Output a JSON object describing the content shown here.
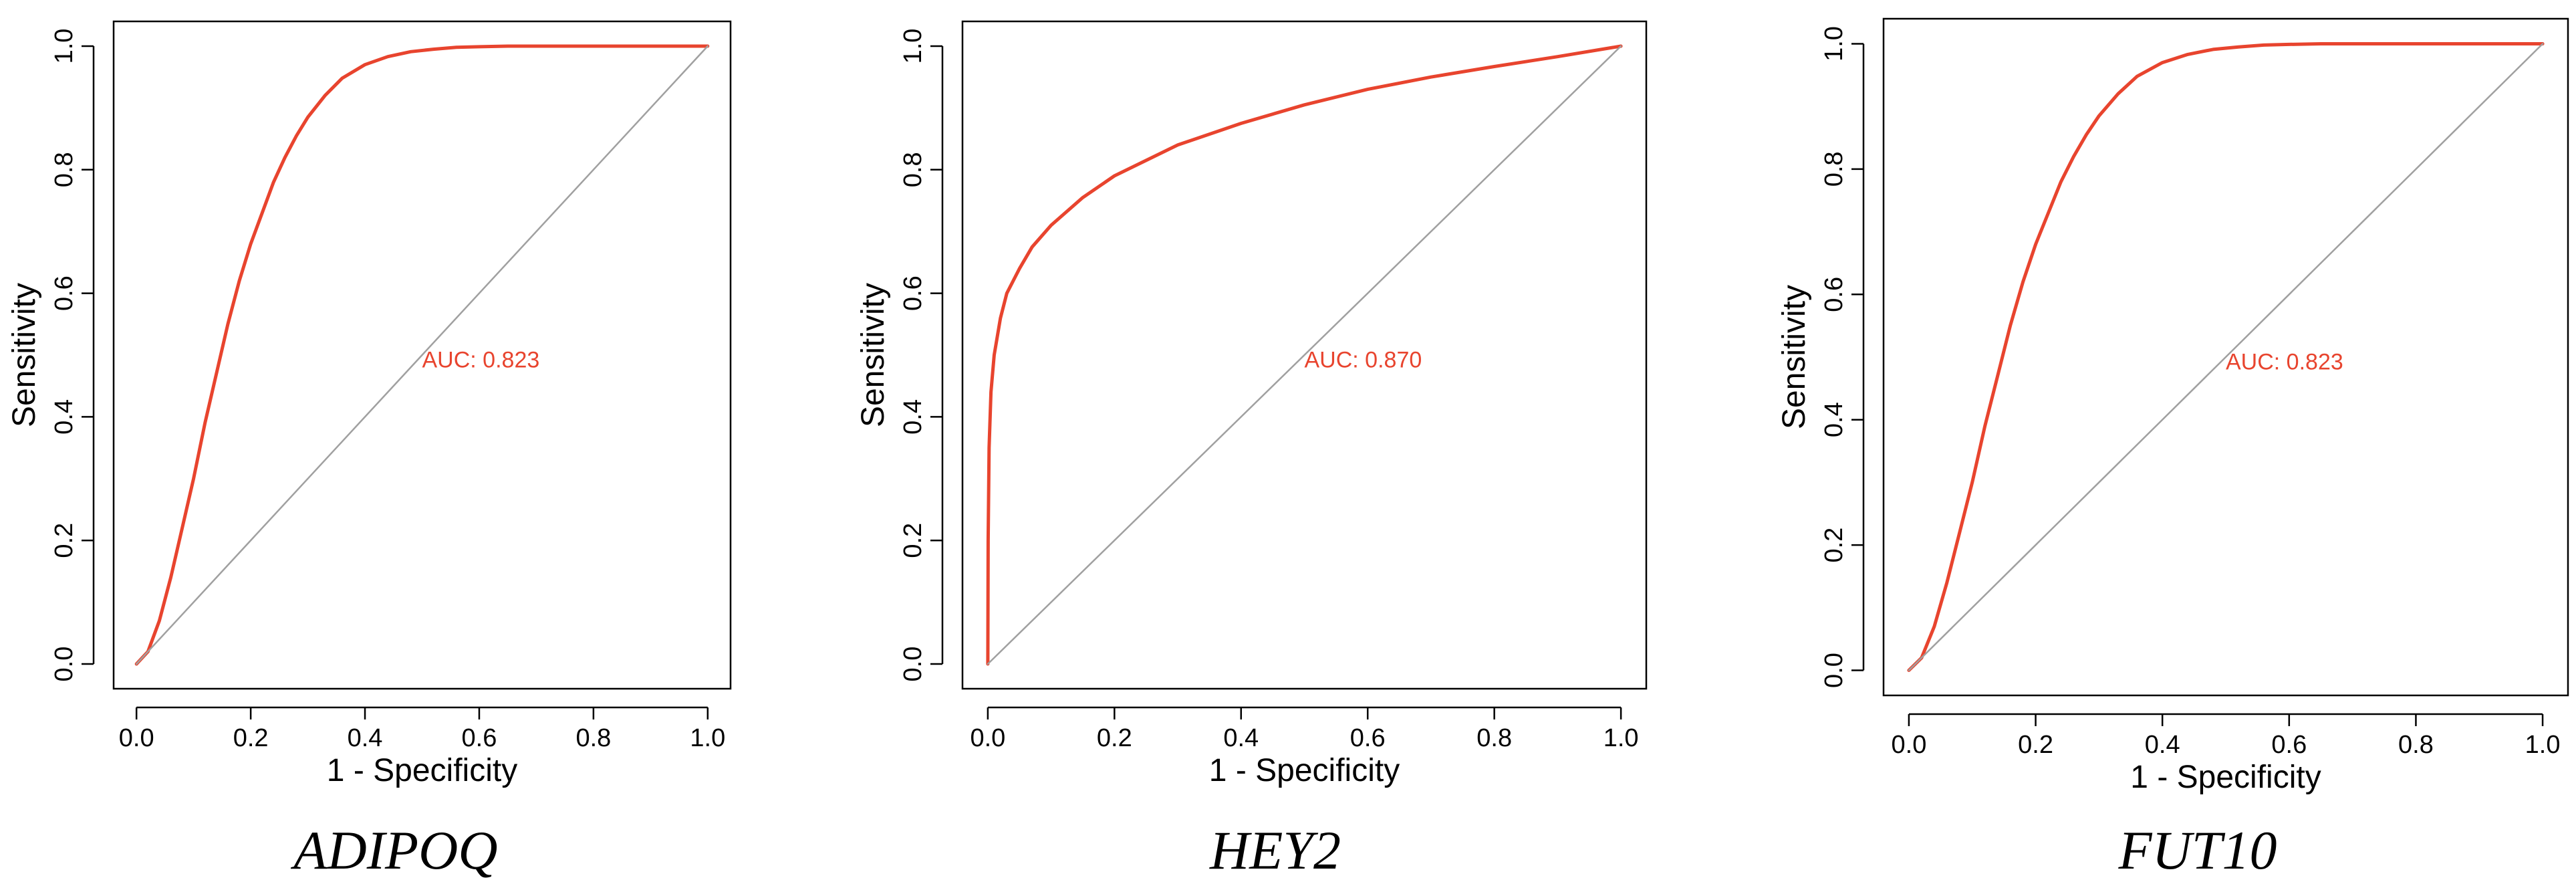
{
  "chart_data": [
    {
      "type": "line",
      "title": "ADIPOQ",
      "xlabel": "1 -  Specificity",
      "ylabel": "Sensitivity",
      "xlim": [
        0,
        1
      ],
      "ylim": [
        0,
        1
      ],
      "xticks": [
        "0.0",
        "0.2",
        "0.4",
        "0.6",
        "0.8",
        "1.0"
      ],
      "yticks": [
        "0.0",
        "0.2",
        "0.4",
        "0.6",
        "0.8",
        "1.0"
      ],
      "annotation": "AUC: 0.823",
      "annotation_pos": [
        0.5,
        0.48
      ],
      "series": [
        {
          "color": "#e8442e",
          "x": [
            0,
            0.02,
            0.04,
            0.06,
            0.08,
            0.1,
            0.12,
            0.14,
            0.16,
            0.18,
            0.2,
            0.22,
            0.24,
            0.26,
            0.28,
            0.3,
            0.33,
            0.36,
            0.4,
            0.44,
            0.48,
            0.52,
            0.56,
            0.6,
            0.65,
            0.7,
            0.8,
            0.9,
            1.0
          ],
          "y": [
            0,
            0.02,
            0.07,
            0.14,
            0.22,
            0.3,
            0.39,
            0.47,
            0.55,
            0.62,
            0.68,
            0.73,
            0.78,
            0.82,
            0.855,
            0.885,
            0.92,
            0.948,
            0.97,
            0.983,
            0.991,
            0.995,
            0.998,
            0.999,
            1.0,
            1.0,
            1.0,
            1.0,
            1.0
          ]
        },
        {
          "name": "",
          "color": "#a0a0a0",
          "x": [
            0,
            1
          ],
          "y": [
            0,
            1
          ]
        }
      ]
    },
    {
      "type": "line",
      "title": "HEY2",
      "xlabel": "1 -  Specificity",
      "ylabel": "Sensitivity",
      "xlim": [
        0,
        1
      ],
      "ylim": [
        0,
        1
      ],
      "xticks": [
        "0.0",
        "0.2",
        "0.4",
        "0.6",
        "0.8",
        "1.0"
      ],
      "yticks": [
        "0.0",
        "0.2",
        "0.4",
        "0.6",
        "0.8",
        "1.0"
      ],
      "annotation": "AUC: 0.870",
      "annotation_pos": [
        0.5,
        0.48
      ],
      "series": [
        {
          "color": "#e8442e",
          "x": [
            0,
            0.0005,
            0.002,
            0.005,
            0.01,
            0.02,
            0.03,
            0.05,
            0.07,
            0.1,
            0.15,
            0.2,
            0.25,
            0.3,
            0.4,
            0.5,
            0.6,
            0.7,
            0.8,
            0.9,
            1.0
          ],
          "y": [
            0,
            0.2,
            0.35,
            0.44,
            0.5,
            0.56,
            0.6,
            0.64,
            0.675,
            0.71,
            0.755,
            0.79,
            0.815,
            0.84,
            0.875,
            0.905,
            0.93,
            0.95,
            0.967,
            0.983,
            1.0
          ]
        },
        {
          "color": "#a0a0a0",
          "x": [
            0,
            1
          ],
          "y": [
            0,
            1
          ]
        }
      ]
    },
    {
      "type": "line",
      "title": "FUT10",
      "xlabel": "1 -  Specificity",
      "ylabel": "Sensitivity",
      "xlim": [
        0,
        1
      ],
      "ylim": [
        0,
        1
      ],
      "xticks": [
        "0.0",
        "0.2",
        "0.4",
        "0.6",
        "0.8",
        "1.0"
      ],
      "yticks": [
        "0.0",
        "0.2",
        "0.4",
        "0.6",
        "0.8",
        "1.0"
      ],
      "annotation": "AUC: 0.823",
      "annotation_pos": [
        0.5,
        0.48
      ],
      "series": [
        {
          "color": "#e8442e",
          "x": [
            0,
            0.02,
            0.04,
            0.06,
            0.08,
            0.1,
            0.12,
            0.14,
            0.16,
            0.18,
            0.2,
            0.22,
            0.24,
            0.26,
            0.28,
            0.3,
            0.33,
            0.36,
            0.4,
            0.44,
            0.48,
            0.52,
            0.56,
            0.6,
            0.65,
            0.7,
            0.8,
            0.9,
            1.0
          ],
          "y": [
            0,
            0.02,
            0.07,
            0.14,
            0.22,
            0.3,
            0.39,
            0.47,
            0.55,
            0.62,
            0.68,
            0.73,
            0.78,
            0.82,
            0.855,
            0.885,
            0.92,
            0.948,
            0.97,
            0.983,
            0.991,
            0.995,
            0.998,
            0.999,
            1.0,
            1.0,
            1.0,
            1.0,
            1.0
          ]
        },
        {
          "color": "#a0a0a0",
          "x": [
            0,
            1
          ],
          "y": [
            0,
            1
          ]
        }
      ]
    }
  ]
}
